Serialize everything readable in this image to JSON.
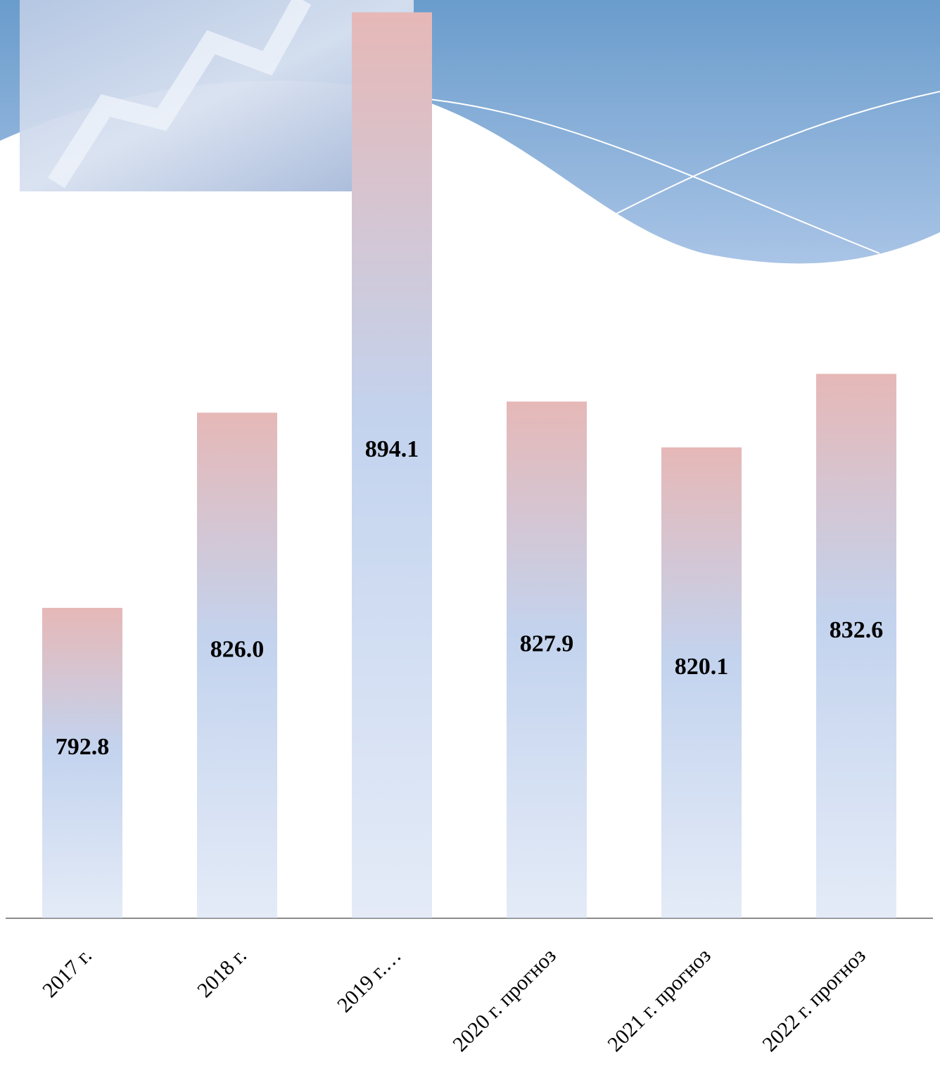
{
  "chart_data": {
    "type": "bar",
    "categories": [
      "2017 г.",
      "2018 г.",
      "2019 г.…",
      "2020 г. прогноз",
      "2021 г. прогноз",
      "2022 г. прогноз"
    ],
    "values": [
      792.8,
      826.0,
      894.1,
      827.9,
      820.1,
      832.6
    ],
    "value_labels": [
      "792.8",
      "826.0",
      "894.1",
      "827.9",
      "820.1",
      "832.6"
    ],
    "color": "#c3d3ee",
    "ylim": [
      740,
      895
    ]
  }
}
